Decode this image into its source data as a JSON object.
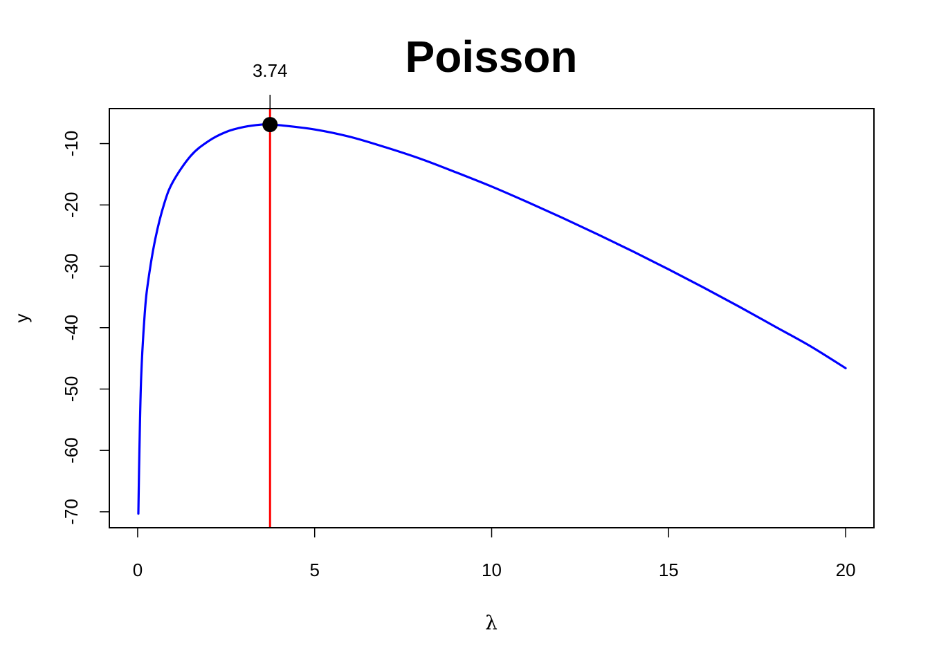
{
  "chart_data": {
    "type": "line",
    "title": "Poisson",
    "xlabel": "λ",
    "ylabel": "y",
    "xlim": [
      -0.8,
      20.8
    ],
    "ylim": [
      -72.6,
      -4.3
    ],
    "x_ticks": [
      0,
      5,
      10,
      15,
      20
    ],
    "x_tick_labels": [
      "0",
      "5",
      "10",
      "15",
      "20"
    ],
    "y_ticks": [
      -70,
      -60,
      -50,
      -40,
      -30,
      -20,
      -10
    ],
    "y_tick_labels": [
      "-70",
      "-60",
      "-50",
      "-40",
      "-30",
      "-20",
      "-10"
    ],
    "grid": false,
    "series": [
      {
        "color": "#0000ff",
        "x": [
          0.02,
          0.05,
          0.1,
          0.2,
          0.3,
          0.5,
          0.75,
          1,
          1.5,
          2,
          2.5,
          3,
          3.5,
          3.74,
          4,
          5,
          6,
          7,
          8,
          9,
          10,
          11,
          12,
          13,
          14,
          15,
          16,
          17,
          18,
          19,
          20
        ],
        "y": [
          -70.3,
          -60,
          -48.0,
          -37.7,
          -32.3,
          -25.5,
          -19.8,
          -16.2,
          -12.0,
          -9.6,
          -8.1,
          -7.3,
          -6.9,
          -6.9,
          -7.0,
          -7.7,
          -8.9,
          -10.6,
          -12.5,
          -14.7,
          -17.0,
          -19.5,
          -22.1,
          -24.8,
          -27.6,
          -30.5,
          -33.5,
          -36.6,
          -39.8,
          -43.0,
          -46.6
        ]
      }
    ],
    "vline": {
      "x": 3.74,
      "color": "#ff0000"
    },
    "max_point": {
      "x": 3.74,
      "y": -6.9,
      "color": "#000000"
    },
    "annotation": {
      "text": "3.74",
      "x": 3.74
    }
  }
}
